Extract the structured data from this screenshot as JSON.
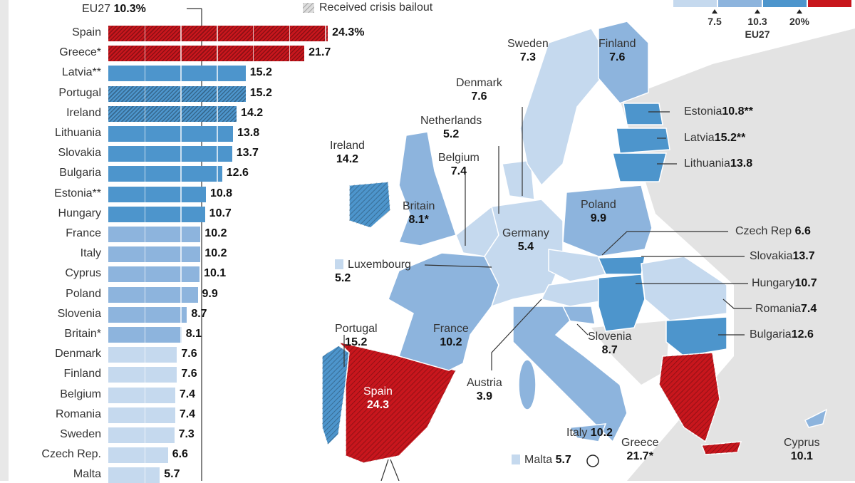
{
  "colors": {
    "red": "#c8161d",
    "dark": "#4d95cc",
    "medium": "#8db4dd",
    "light": "#c5d9ee",
    "nonEU": "#e3e3e3"
  },
  "header": {
    "eu_label": "EU27",
    "eu_value": "10.3%",
    "bailout_label": "Received crisis bailout"
  },
  "legend": {
    "ticks": [
      "7.5",
      "10.3",
      "20%"
    ],
    "eu_label": "EU27"
  },
  "chart_data": {
    "type": "bar",
    "orientation": "horizontal",
    "xlim": [
      0,
      25
    ],
    "reference_line": {
      "label": "EU27",
      "value": 10.3
    },
    "categories": [
      "Spain",
      "Greece*",
      "Latvia**",
      "Portugal",
      "Ireland",
      "Lithuania",
      "Slovakia",
      "Bulgaria",
      "Estonia**",
      "Hungary",
      "France",
      "Italy",
      "Cyprus",
      "Poland",
      "Slovenia",
      "Britain*",
      "Denmark",
      "Finland",
      "Belgium",
      "Romania",
      "Sweden",
      "Czech Rep.",
      "Malta"
    ],
    "values": [
      24.3,
      21.7,
      15.2,
      15.2,
      14.2,
      13.8,
      13.7,
      12.6,
      10.8,
      10.7,
      10.2,
      10.2,
      10.1,
      9.9,
      8.7,
      8.1,
      7.6,
      7.6,
      7.4,
      7.4,
      7.3,
      6.6,
      5.7
    ],
    "value_labels": [
      "24.3%",
      "21.7",
      "15.2",
      "15.2",
      "14.2",
      "13.8",
      "13.7",
      "12.6",
      "10.8",
      "10.7",
      "10.2",
      "10.2",
      "10.1",
      "9.9",
      "8.7",
      "8.1",
      "7.6",
      "7.6",
      "7.4",
      "7.4",
      "7.3",
      "6.6",
      "5.7"
    ],
    "tiers": [
      "red",
      "red",
      "dark",
      "dark",
      "dark",
      "dark",
      "dark",
      "dark",
      "dark",
      "dark",
      "medium",
      "medium",
      "medium",
      "medium",
      "medium",
      "medium",
      "light",
      "light",
      "light",
      "light",
      "light",
      "light",
      "light"
    ],
    "hatched": [
      true,
      true,
      false,
      true,
      true,
      false,
      false,
      false,
      false,
      false,
      false,
      false,
      false,
      false,
      false,
      false,
      false,
      false,
      false,
      false,
      false,
      false,
      false
    ]
  },
  "map_labels": {
    "sweden": {
      "name": "Sweden",
      "value": "7.3"
    },
    "finland": {
      "name": "Finland",
      "value": "7.6"
    },
    "denmark": {
      "name": "Denmark",
      "value": "7.6"
    },
    "netherlands": {
      "name": "Netherlands",
      "value": "5.2"
    },
    "ireland": {
      "name": "Ireland",
      "value": "14.2"
    },
    "belgium": {
      "name": "Belgium",
      "value": "7.4"
    },
    "britain": {
      "name": "Britain",
      "value": "8.1*"
    },
    "germany": {
      "name": "Germany",
      "value": "5.4"
    },
    "poland": {
      "name": "Poland",
      "value": "9.9"
    },
    "luxembourg": {
      "name": "Luxembourg",
      "value": "5.2"
    },
    "portugal": {
      "name": "Portugal",
      "value": "15.2"
    },
    "france": {
      "name": "France",
      "value": "10.2"
    },
    "spain": {
      "name": "Spain",
      "value": "24.3"
    },
    "austria": {
      "name": "Austria",
      "value": "3.9"
    },
    "italy": {
      "name": "Italy",
      "value": "10.2"
    },
    "slovenia": {
      "name": "Slovenia",
      "value": "8.7"
    },
    "malta": {
      "name": "Malta",
      "value": "5.7"
    },
    "greece": {
      "name": "Greece",
      "value": "21.7*"
    },
    "cyprus": {
      "name": "Cyprus",
      "value": "10.1"
    },
    "estonia": {
      "name": "Estonia",
      "value": "10.8**"
    },
    "latvia": {
      "name": "Latvia",
      "value": "15.2**"
    },
    "lithuania": {
      "name": "Lithuania",
      "value": "13.8"
    },
    "czech": {
      "name": "Czech Rep",
      "value": "6.6"
    },
    "slovakia": {
      "name": "Slovakia",
      "value": "13.7"
    },
    "hungary": {
      "name": "Hungary",
      "value": "10.7"
    },
    "romania": {
      "name": "Romania",
      "value": "7.4"
    },
    "bulgaria": {
      "name": "Bulgaria",
      "value": "12.6"
    }
  }
}
